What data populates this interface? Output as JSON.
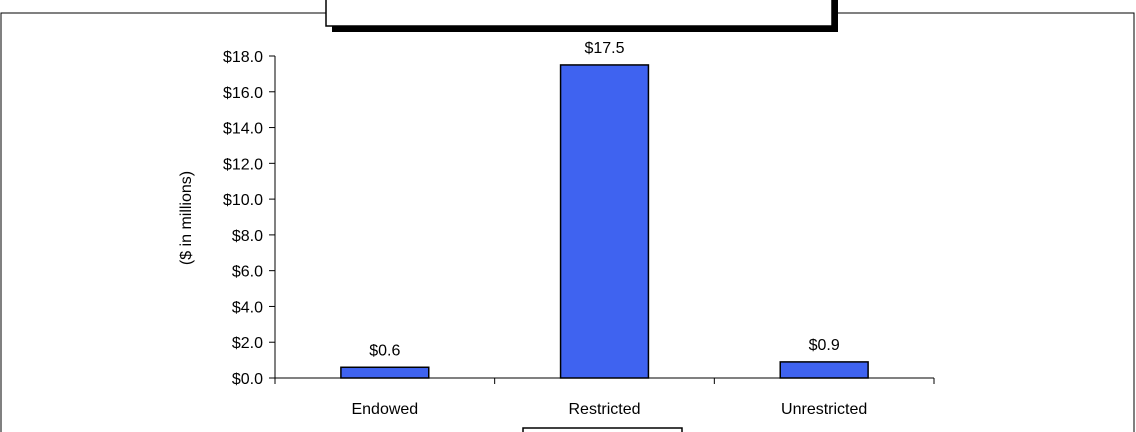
{
  "chart_data": {
    "type": "bar",
    "title": "",
    "xlabel": "",
    "ylabel": "($ in millions)",
    "categories": [
      "Endowed",
      "Restricted",
      "Unrestricted"
    ],
    "values": [
      0.6,
      17.5,
      0.9
    ],
    "value_labels": [
      "$0.6",
      "$17.5",
      "$0.9"
    ],
    "yticks": [
      0,
      2,
      4,
      6,
      8,
      10,
      12,
      14,
      16,
      18
    ],
    "ytick_labels": [
      "$0.0",
      "$2.0",
      "$4.0",
      "$6.0",
      "$8.0",
      "$10.0",
      "$12.0",
      "$14.0",
      "$16.0",
      "$18.0"
    ],
    "ylim": [
      0,
      18
    ],
    "grid": false,
    "legend": "none",
    "bar_color": "#3f63f0",
    "bar_stroke": "#000000"
  }
}
